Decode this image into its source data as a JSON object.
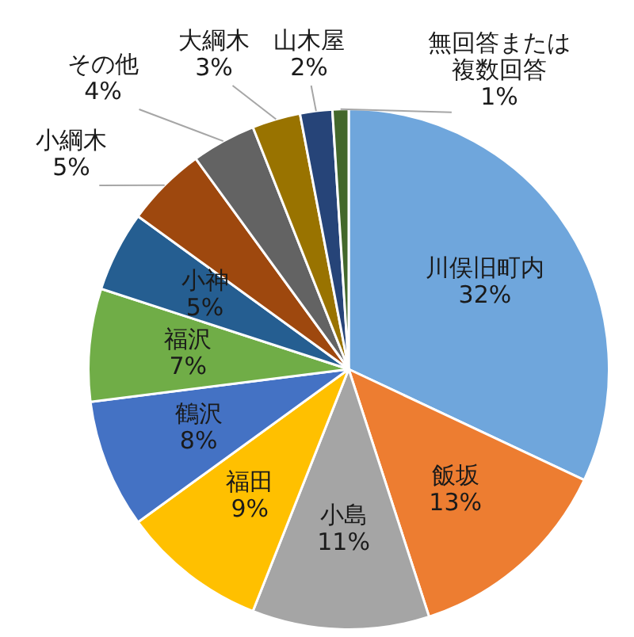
{
  "chart_data": {
    "type": "pie",
    "categories": [
      "川俣旧町内",
      "飯坂",
      "小島",
      "福田",
      "鶴沢",
      "福沢",
      "小神",
      "小綱木",
      "その他",
      "大綱木",
      "山木屋",
      "無回答または複数回答"
    ],
    "values": [
      32,
      13,
      11,
      9,
      8,
      7,
      5,
      5,
      4,
      3,
      2,
      1
    ],
    "value_labels": [
      "32%",
      "13%",
      "11%",
      "9%",
      "8%",
      "7%",
      "5%",
      "5%",
      "4%",
      "3%",
      "2%",
      "1%"
    ],
    "colors": [
      "#6fa6dc",
      "#ed7d31",
      "#a5a5a5",
      "#ffc000",
      "#4472c4",
      "#70ad47",
      "#255e91",
      "#9e480e",
      "#636363",
      "#997300",
      "#264478",
      "#43682b"
    ],
    "legend": false
  }
}
